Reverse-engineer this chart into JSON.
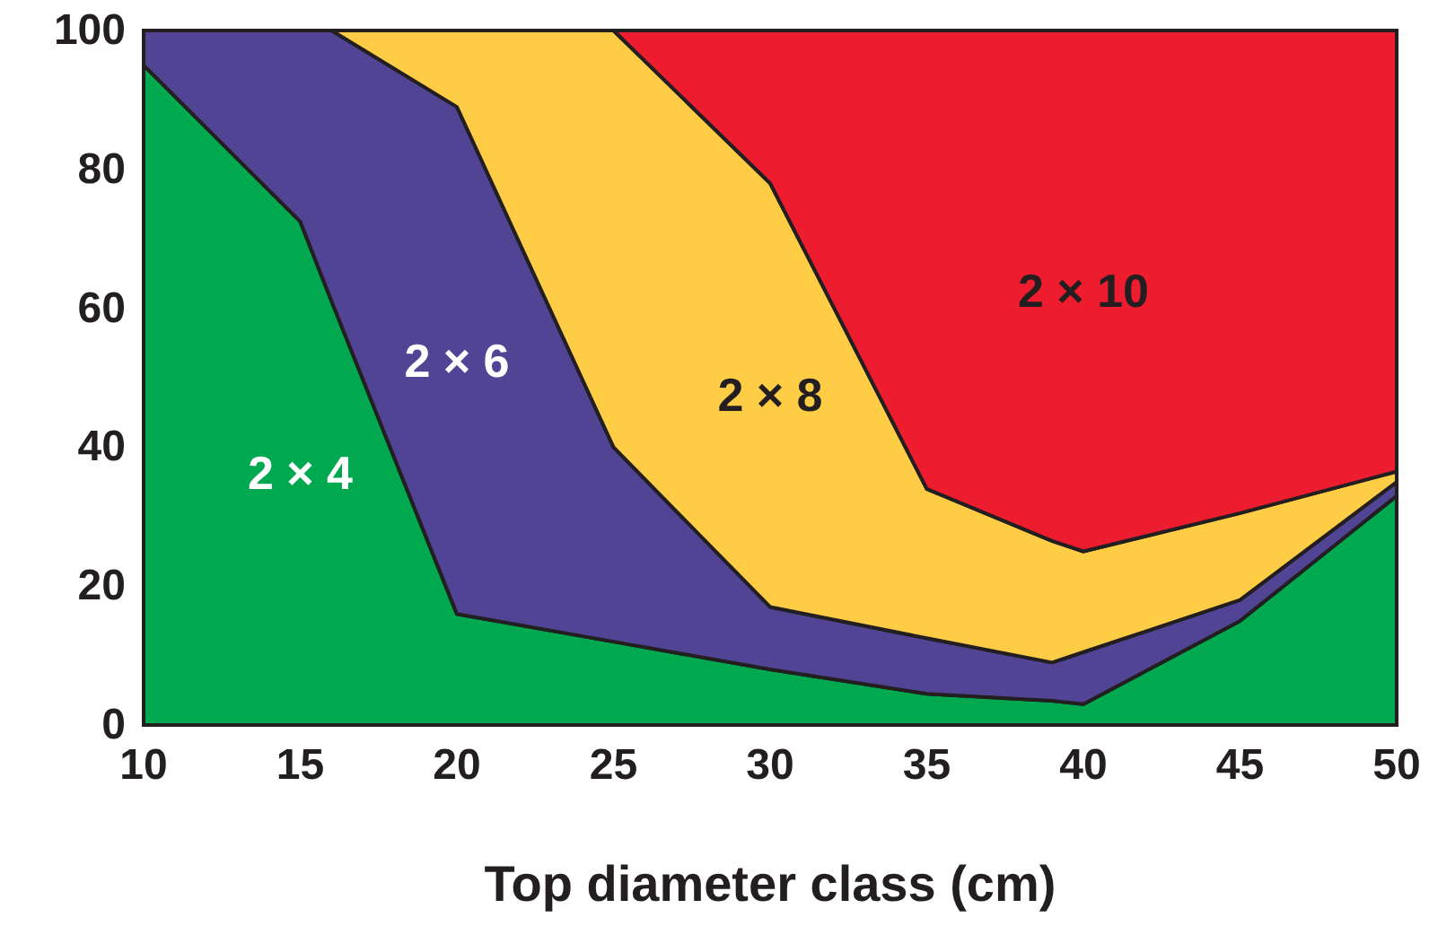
{
  "chart_data": {
    "type": "area",
    "stacked": true,
    "xlabel": "Top diameter class (cm)",
    "x": [
      10,
      15,
      16,
      20,
      25,
      30,
      35,
      39,
      40,
      45,
      50
    ],
    "xlim": [
      10,
      50
    ],
    "xticks": [
      10,
      15,
      20,
      25,
      30,
      35,
      40,
      45,
      50
    ],
    "ylim": [
      0,
      100
    ],
    "yticks": [
      0,
      20,
      40,
      60,
      80,
      100
    ],
    "series": [
      {
        "name": "2 × 4",
        "color": "#00a84f",
        "values": [
          95,
          72.5,
          61,
          16,
          12,
          8,
          4.5,
          3.5,
          3,
          15,
          33
        ]
      },
      {
        "name": "2 × 6",
        "color": "#524494",
        "values": [
          5,
          27.5,
          39,
          73,
          28,
          9,
          8,
          5.5,
          7.5,
          3,
          2
        ]
      },
      {
        "name": "2 × 8",
        "color": "#ffcd45",
        "values": [
          0,
          0,
          0,
          11,
          60,
          61,
          21.5,
          17.5,
          14.5,
          12.5,
          1.5
        ]
      },
      {
        "name": "2 × 10",
        "color": "#ed1c2e",
        "values": [
          0,
          0,
          0,
          0,
          0,
          22,
          66,
          73.5,
          75,
          69.5,
          63.5
        ]
      }
    ]
  }
}
